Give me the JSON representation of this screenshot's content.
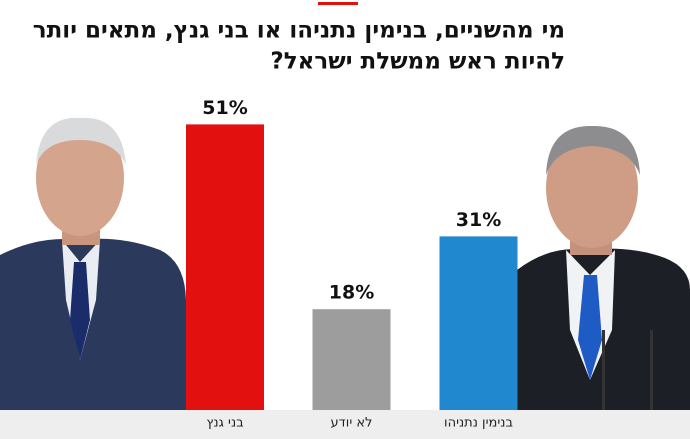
{
  "chart_data": {
    "type": "bar",
    "title": [
      "מי מהשניים, בנימין נתניהו או בני גנץ, מתאים יותר",
      "להיות ראש ממשלת ישראל?"
    ],
    "categories": [
      "בני גנץ",
      "לא יודע",
      "בנימין נתניהו"
    ],
    "values": [
      51,
      18,
      31
    ],
    "value_labels": [
      "51%",
      "18%",
      "31%"
    ],
    "colors": [
      "#e2100f",
      "#9d9d9d",
      "#1f88cf"
    ]
  }
}
